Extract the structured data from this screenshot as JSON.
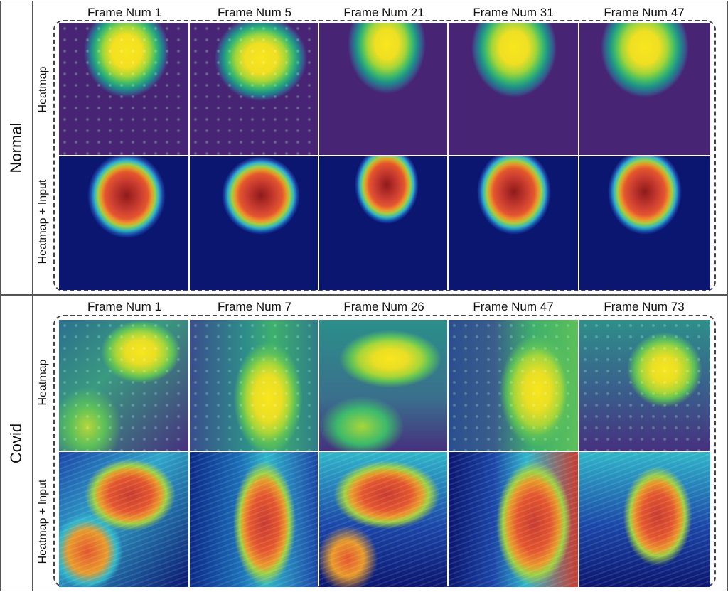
{
  "sections": [
    {
      "label": "Normal",
      "frames": [
        "Frame Num 1",
        "Frame Num 5",
        "Frame Num 21",
        "Frame Num 31",
        "Frame Num 47"
      ]
    },
    {
      "label": "Covid",
      "frames": [
        "Frame Num 1",
        "Frame Num 7",
        "Frame Num 26",
        "Frame Num 47",
        "Frame Num 73"
      ]
    }
  ],
  "row_labels": {
    "heatmap": "Heatmap",
    "overlay": "Heatmap + Input"
  }
}
